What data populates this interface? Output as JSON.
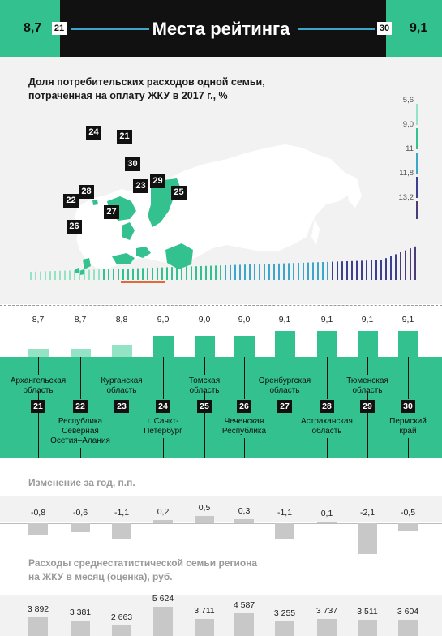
{
  "header": {
    "left_value": "8,7",
    "left_rank": "21",
    "title": "Места рейтинга",
    "right_rank": "30",
    "right_value": "9,1"
  },
  "colors": {
    "green": "#33c28f",
    "light_green": "#93e3c4",
    "dark": "#111111",
    "blue": "#3ea6c9",
    "navy": "#3d3f8f",
    "purple": "#4c3d7a",
    "grey_bar": "#c8c8c8",
    "highlight": "#e06a3c"
  },
  "map": {
    "title_line1": "Доля потребительских расходов одной семьи,",
    "title_line2": "потраченная на оплату ЖКУ в 2017 г., %",
    "scale": [
      "5,6",
      "9,0",
      "11",
      "11,8",
      "13,2"
    ],
    "markers": [
      "24",
      "21",
      "30",
      "29",
      "23",
      "25",
      "22",
      "28",
      "26",
      "27"
    ]
  },
  "chart_data": [
    {
      "type": "bar",
      "title": "Доля потребительских расходов одной семьи, потраченная на оплату ЖКУ в 2017 г., %",
      "categories": [
        "Архангельская область",
        "Республика Северная Осетия–Алания",
        "Курганская область",
        "г. Санкт-Петербург",
        "Томская область",
        "Чеченская Республика",
        "Оренбургская область",
        "Астраханская область",
        "Тюменская область",
        "Пермский край"
      ],
      "ranks": [
        "21",
        "22",
        "23",
        "24",
        "25",
        "26",
        "27",
        "28",
        "29",
        "30"
      ],
      "values": [
        8.7,
        8.7,
        8.8,
        9.0,
        9.0,
        9.0,
        9.1,
        9.1,
        9.1,
        9.1
      ],
      "labels": [
        "8,7",
        "8,7",
        "8,8",
        "9,0",
        "9,0",
        "9,0",
        "9,1",
        "9,1",
        "9,1",
        "9,1"
      ],
      "ylim": [
        5.6,
        13.2
      ]
    },
    {
      "type": "bar",
      "title": "Изменение за год, п.п.",
      "categories": [
        "21",
        "22",
        "23",
        "24",
        "25",
        "26",
        "27",
        "28",
        "29",
        "30"
      ],
      "values": [
        -0.8,
        -0.6,
        -1.1,
        0.2,
        0.5,
        0.3,
        -1.1,
        0.1,
        -2.1,
        -0.5
      ],
      "labels": [
        "-0,8",
        "-0,6",
        "-1,1",
        "0,2",
        "0,5",
        "0,3",
        "-1,1",
        "0,1",
        "-2,1",
        "-0,5"
      ]
    },
    {
      "type": "bar",
      "title_line1": "Расходы среднестатистической семьи региона",
      "title_line2": "на ЖКУ в месяц (оценка), руб.",
      "categories": [
        "21",
        "22",
        "23",
        "24",
        "25",
        "26",
        "27",
        "28",
        "29",
        "30"
      ],
      "values": [
        3892,
        3381,
        2663,
        5624,
        3711,
        4587,
        3255,
        3737,
        3511,
        3604
      ],
      "labels": [
        "3 892",
        "3 381",
        "2 663",
        "5 624",
        "3 711",
        "4 587",
        "3 255",
        "3 737",
        "3 511",
        "3 604"
      ]
    }
  ],
  "regions": [
    {
      "rank": "21",
      "name_lines": [
        "Архангельская",
        "область"
      ],
      "pos": "top"
    },
    {
      "rank": "22",
      "name_lines": [
        "Республика",
        "Северная",
        "Осетия–Алания"
      ],
      "pos": "bottom"
    },
    {
      "rank": "23",
      "name_lines": [
        "Курганская",
        "область"
      ],
      "pos": "top"
    },
    {
      "rank": "24",
      "name_lines": [
        "г. Санкт-",
        "Петербург"
      ],
      "pos": "bottom"
    },
    {
      "rank": "25",
      "name_lines": [
        "Томская",
        "область"
      ],
      "pos": "top"
    },
    {
      "rank": "26",
      "name_lines": [
        "Чеченская",
        "Республика"
      ],
      "pos": "bottom"
    },
    {
      "rank": "27",
      "name_lines": [
        "Оренбургская",
        "область"
      ],
      "pos": "top"
    },
    {
      "rank": "28",
      "name_lines": [
        "Астраханская",
        "область"
      ],
      "pos": "bottom"
    },
    {
      "rank": "29",
      "name_lines": [
        "Тюменская",
        "область"
      ],
      "pos": "top"
    },
    {
      "rank": "30",
      "name_lines": [
        "Пермский",
        "край"
      ],
      "pos": "bottom"
    }
  ]
}
